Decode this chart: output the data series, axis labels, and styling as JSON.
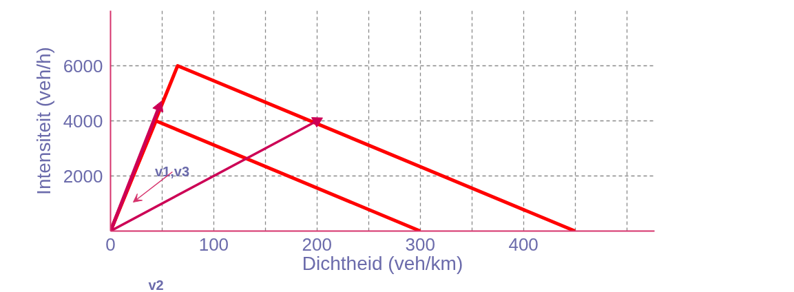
{
  "chart_data": {
    "type": "line",
    "xlabel": "Dichtheid (veh/km)",
    "ylabel": "Intensiteit (veh/h)",
    "xlim": [
      0,
      527
    ],
    "ylim": [
      0,
      8000
    ],
    "xticks": [
      0,
      {
        "value": 50,
        "label": null
      },
      100,
      {
        "value": 150,
        "label": null
      },
      200,
      {
        "value": 250,
        "label": null
      },
      300,
      {
        "value": 350,
        "label": null
      },
      400,
      {
        "value": 450,
        "label": null
      },
      {
        "value": 500,
        "label": null
      }
    ],
    "yticks": [
      {
        "value": 0,
        "label": null
      },
      2000,
      4000,
      6000
    ],
    "grid": true,
    "line_style": "solid",
    "marker": "none",
    "series": [
      {
        "color": "#ff0000",
        "x": [
          0,
          44,
          300
        ],
        "values": [
          0,
          4000,
          0
        ]
      },
      {
        "color": "#ff0000",
        "x": [
          0,
          65,
          450
        ],
        "values": [
          0,
          6000,
          0
        ]
      },
      {
        "color": "#cc0055",
        "marker": "triangle",
        "x": [
          0,
          47
        ],
        "values": [
          0,
          4500
        ]
      },
      {
        "color": "#cc0055",
        "marker": "triangle",
        "x": [
          0,
          200
        ],
        "values": [
          0,
          4000
        ]
      }
    ],
    "annotations": [
      "v1,v3",
      "v2"
    ]
  }
}
